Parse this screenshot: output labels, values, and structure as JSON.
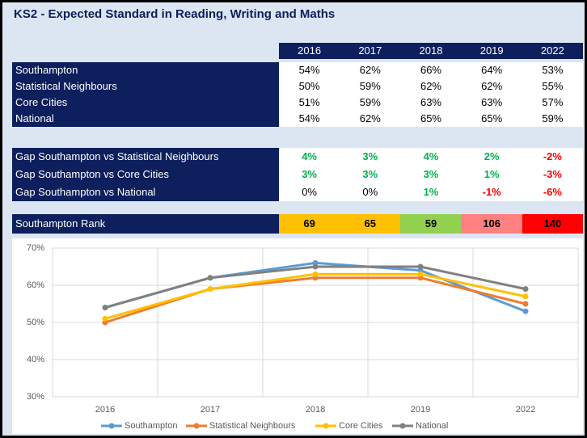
{
  "header": {
    "title": "KS2 - Expected Standard in Reading, Writing and Maths"
  },
  "table": {
    "years": [
      "2016",
      "2017",
      "2018",
      "2019",
      "2022"
    ],
    "rows": [
      {
        "label": "Southampton",
        "values": [
          "54%",
          "62%",
          "66%",
          "64%",
          "53%"
        ]
      },
      {
        "label": "Statistical Neighbours",
        "values": [
          "50%",
          "59%",
          "62%",
          "62%",
          "55%"
        ]
      },
      {
        "label": "Core Cities",
        "values": [
          "51%",
          "59%",
          "63%",
          "63%",
          "57%"
        ]
      },
      {
        "label": "National",
        "values": [
          "54%",
          "62%",
          "65%",
          "65%",
          "59%"
        ]
      }
    ],
    "gaps": [
      {
        "label": "Gap Southampton vs Statistical Neighbours",
        "values": [
          "4%",
          "3%",
          "4%",
          "2%",
          "-2%"
        ],
        "colors": [
          "#00b050",
          "#00b050",
          "#00b050",
          "#00b050",
          "#ff0000"
        ]
      },
      {
        "label": "Gap Southampton vs Core Cities",
        "values": [
          "3%",
          "3%",
          "3%",
          "1%",
          "-3%"
        ],
        "colors": [
          "#00b050",
          "#00b050",
          "#00b050",
          "#00b050",
          "#ff0000"
        ]
      },
      {
        "label": "Gap Southampton vs National",
        "values": [
          "0%",
          "0%",
          "1%",
          "-1%",
          "-6%"
        ],
        "colors": [
          "#000000",
          "#000000",
          "#00b050",
          "#ff0000",
          "#ff0000"
        ]
      }
    ],
    "rank": {
      "label": "Southampton Rank",
      "values": [
        "69",
        "65",
        "59",
        "106",
        "140"
      ],
      "colors": [
        "#ffc000",
        "#ffc000",
        "#92d050",
        "#ff8080",
        "#ff0000"
      ]
    }
  },
  "chart_data": {
    "type": "line",
    "categories": [
      "2016",
      "2017",
      "2018",
      "2019",
      "2022"
    ],
    "series": [
      {
        "name": "Southampton",
        "color": "#5b9bd5",
        "values": [
          54,
          62,
          66,
          64,
          53
        ]
      },
      {
        "name": "Statistical Neighbours",
        "color": "#ed7d31",
        "values": [
          50,
          59,
          62,
          62,
          55
        ]
      },
      {
        "name": "Core Cities",
        "color": "#ffc000",
        "values": [
          51,
          59,
          63,
          63,
          57
        ]
      },
      {
        "name": "National",
        "color": "#808080",
        "values": [
          54,
          62,
          65,
          65,
          59
        ]
      }
    ],
    "ylim": [
      30,
      70
    ],
    "yticks": [
      {
        "value": 30,
        "label": "30%"
      },
      {
        "value": 40,
        "label": "40%"
      },
      {
        "value": 50,
        "label": "50%"
      },
      {
        "value": 60,
        "label": "60%"
      },
      {
        "value": 70,
        "label": "70%"
      }
    ],
    "grid": true
  }
}
